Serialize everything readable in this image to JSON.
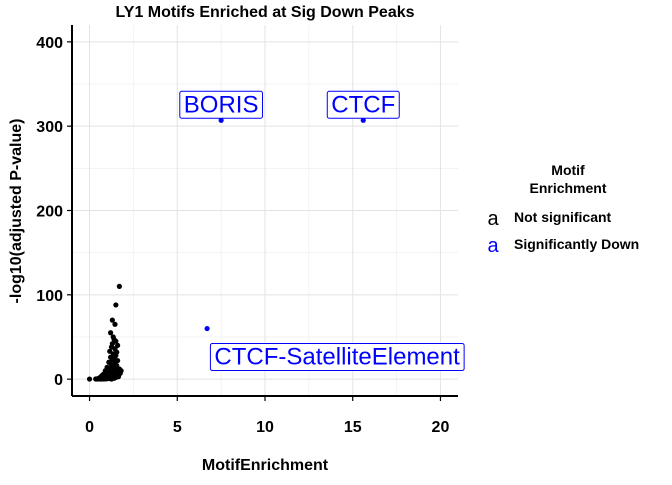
{
  "chart_data": {
    "type": "scatter",
    "title": "LY1 Motifs Enriched at Sig Down Peaks",
    "xlabel": "MotifEnrichment",
    "ylabel": "-log10(adjusted P-value)",
    "xlim": [
      -1,
      21
    ],
    "ylim": [
      -20,
      420
    ],
    "x_ticks": [
      "0",
      "5",
      "10",
      "15",
      "20"
    ],
    "y_ticks": [
      "0",
      "100",
      "200",
      "300",
      "400"
    ],
    "grid": true,
    "legend": {
      "title_line1": "Motif",
      "title_line2": "Enrichment",
      "placement": "right",
      "key_glyph": "a",
      "entries": [
        {
          "label": "Not significant",
          "color": "#000000"
        },
        {
          "label": "Significantly Down",
          "color": "#0000FF"
        }
      ]
    },
    "series": [
      {
        "name": "Not significant",
        "color": "#000000",
        "points": [
          [
            1.7,
            110
          ],
          [
            1.5,
            88
          ],
          [
            1.3,
            70
          ],
          [
            1.45,
            65
          ],
          [
            1.2,
            55
          ],
          [
            1.35,
            50
          ],
          [
            1.4,
            47
          ],
          [
            1.5,
            45
          ],
          [
            1.3,
            42
          ],
          [
            1.6,
            40
          ],
          [
            1.25,
            38
          ],
          [
            1.45,
            36
          ],
          [
            1.15,
            33
          ],
          [
            1.55,
            32
          ],
          [
            1.35,
            30
          ],
          [
            1.5,
            28
          ],
          [
            1.2,
            26
          ],
          [
            1.4,
            25
          ],
          [
            1.3,
            23
          ],
          [
            1.6,
            22
          ],
          [
            1.1,
            20
          ],
          [
            1.45,
            19
          ],
          [
            1.25,
            17
          ],
          [
            1.55,
            16
          ],
          [
            1.35,
            15
          ],
          [
            1.0,
            14
          ],
          [
            1.5,
            13
          ],
          [
            1.2,
            12
          ],
          [
            1.7,
            12
          ],
          [
            1.4,
            11
          ],
          [
            1.8,
            10
          ],
          [
            0.9,
            10
          ],
          [
            1.3,
            9
          ],
          [
            1.6,
            8
          ],
          [
            1.1,
            8
          ],
          [
            1.75,
            7
          ],
          [
            1.45,
            7
          ],
          [
            0.8,
            6
          ],
          [
            1.25,
            6
          ],
          [
            1.55,
            5
          ],
          [
            1.05,
            5
          ],
          [
            1.35,
            4
          ],
          [
            0.7,
            4
          ],
          [
            1.65,
            3
          ],
          [
            1.15,
            3
          ],
          [
            0.95,
            3
          ],
          [
            1.5,
            2
          ],
          [
            0.6,
            2
          ],
          [
            1.3,
            2
          ],
          [
            0.85,
            2
          ],
          [
            1.1,
            1
          ],
          [
            0.5,
            1
          ],
          [
            1.4,
            1
          ],
          [
            0.75,
            1
          ],
          [
            1.2,
            0.5
          ],
          [
            0.65,
            0.5
          ],
          [
            1.0,
            0.5
          ],
          [
            0.55,
            0.3
          ],
          [
            0.9,
            0.3
          ],
          [
            0.45,
            0.2
          ],
          [
            0.35,
            0.2
          ],
          [
            0.8,
            0.2
          ],
          [
            0.7,
            0.1
          ],
          [
            0.6,
            0.1
          ],
          [
            0.0,
            0.1
          ],
          [
            1.25,
            0.1
          ],
          [
            0.4,
            0.1
          ]
        ]
      },
      {
        "name": "Significantly Down",
        "color": "#0000FF",
        "points": [
          [
            7.5,
            307
          ],
          [
            15.6,
            307
          ],
          [
            6.7,
            60
          ]
        ]
      }
    ],
    "annotations": [
      {
        "text": "BORIS",
        "x": 7.5,
        "y": 307
      },
      {
        "text": "CTCF",
        "x": 15.6,
        "y": 307
      },
      {
        "text": "CTCF-SatelliteElement",
        "x": 6.7,
        "y": 60
      }
    ]
  }
}
